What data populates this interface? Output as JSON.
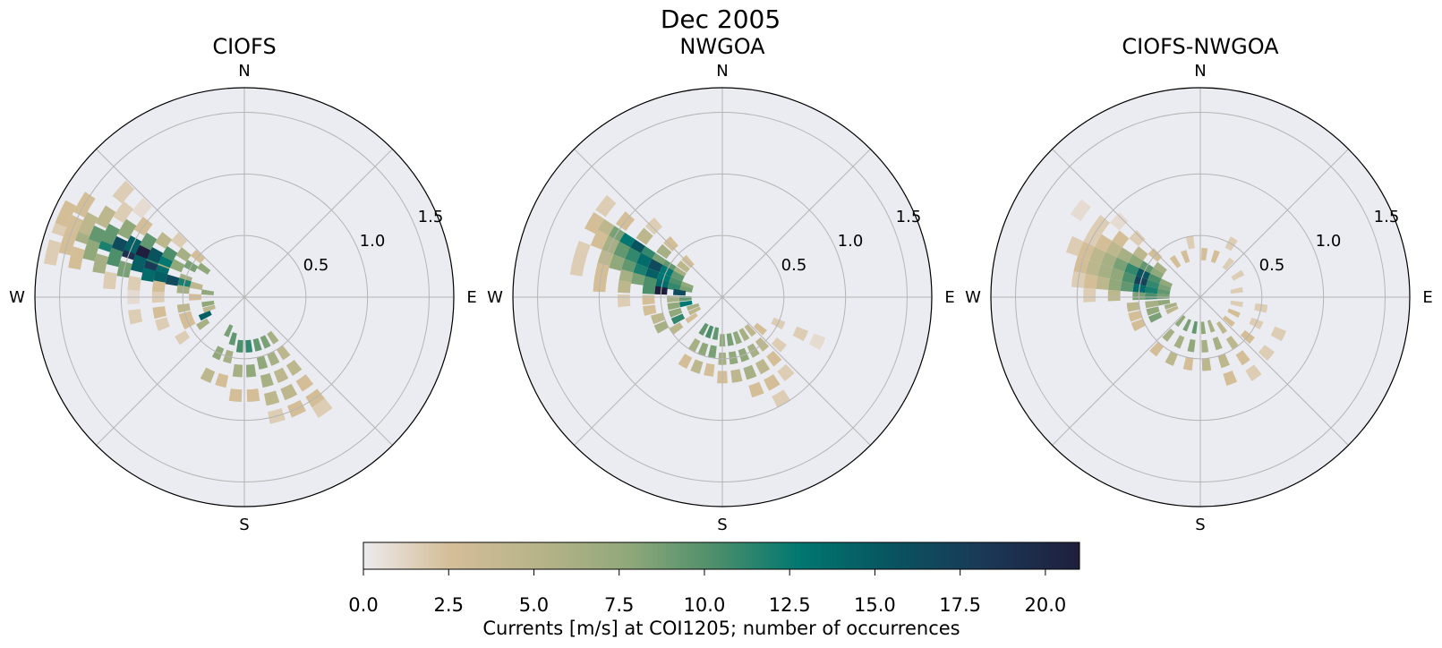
{
  "suptitle": "Dec 2005",
  "compass": {
    "north": "N",
    "east": "E",
    "south": "S",
    "west": "W"
  },
  "radial_ticks": [
    "0.5",
    "1.0",
    "1.5"
  ],
  "colorbar": {
    "label": "Currents [m/s] at COI1205; number of occurrences",
    "ticks": [
      "0.0",
      "2.5",
      "5.0",
      "7.5",
      "10.0",
      "12.5",
      "15.0",
      "17.5",
      "20.0"
    ],
    "range": [
      0,
      21
    ],
    "colors": [
      "#edeaed",
      "#d4be98",
      "#90a87a",
      "#4d8f6b",
      "#007770",
      "#09535f",
      "#1a3a58",
      "#1f1f3d"
    ]
  },
  "colors": {
    "axes_bg": "#ebebf2",
    "grid": "#b5b5b5",
    "edge": "#000000"
  },
  "chart_data": [
    {
      "type": "heatmap",
      "subtype": "polar current rose (speed vs direction, counts)",
      "title": "CIOFS",
      "rmax": 1.7,
      "rticks": [
        0.5,
        1.0,
        1.5
      ],
      "note": "Counts concentrated toward WNW (speeds up to ~1.6 m/s) and SE (up to ~1.1 m/s).",
      "bins": [
        [
          292,
          0.7,
          5
        ],
        [
          292,
          0.8,
          10
        ],
        [
          292,
          0.9,
          14
        ],
        [
          292,
          1.0,
          19
        ],
        [
          292,
          1.1,
          16
        ],
        [
          292,
          1.2,
          11
        ],
        [
          292,
          1.3,
          8
        ],
        [
          292,
          1.4,
          5
        ],
        [
          292,
          1.5,
          3
        ],
        [
          292,
          1.6,
          2
        ],
        [
          295,
          0.6,
          6
        ],
        [
          295,
          0.7,
          12
        ],
        [
          295,
          0.8,
          15
        ],
        [
          295,
          0.9,
          21
        ],
        [
          295,
          1.0,
          14
        ],
        [
          295,
          1.2,
          8
        ],
        [
          295,
          1.4,
          4
        ],
        [
          295,
          1.6,
          3
        ],
        [
          287,
          0.5,
          5
        ],
        [
          287,
          0.7,
          13
        ],
        [
          287,
          0.8,
          18
        ],
        [
          287,
          0.9,
          14
        ],
        [
          287,
          1.1,
          9
        ],
        [
          287,
          1.3,
          6
        ],
        [
          287,
          1.5,
          3
        ],
        [
          283,
          0.4,
          4
        ],
        [
          283,
          0.5,
          11
        ],
        [
          283,
          0.6,
          16
        ],
        [
          283,
          0.7,
          14
        ],
        [
          283,
          0.8,
          13
        ],
        [
          283,
          1.0,
          7
        ],
        [
          283,
          1.2,
          5
        ],
        [
          283,
          1.4,
          3
        ],
        [
          283,
          1.6,
          2
        ],
        [
          300,
          0.5,
          7
        ],
        [
          300,
          0.7,
          9
        ],
        [
          300,
          0.9,
          8
        ],
        [
          300,
          1.1,
          6
        ],
        [
          300,
          1.3,
          4
        ],
        [
          300,
          1.5,
          3
        ],
        [
          305,
          0.4,
          6
        ],
        [
          305,
          0.6,
          5
        ],
        [
          305,
          0.8,
          4
        ],
        [
          305,
          1.0,
          3
        ],
        [
          305,
          1.2,
          2
        ],
        [
          311,
          0.5,
          3
        ],
        [
          311,
          0.7,
          2
        ],
        [
          311,
          1.1,
          1
        ],
        [
          311,
          1.3,
          2
        ],
        [
          277,
          0.3,
          6
        ],
        [
          277,
          0.5,
          5
        ],
        [
          277,
          0.7,
          3
        ],
        [
          277,
          0.9,
          2
        ],
        [
          277,
          1.1,
          2
        ],
        [
          270,
          0.4,
          3
        ],
        [
          270,
          0.7,
          2
        ],
        [
          270,
          0.9,
          1
        ],
        [
          260,
          0.3,
          6
        ],
        [
          260,
          0.5,
          4
        ],
        [
          260,
          0.7,
          3
        ],
        [
          260,
          0.9,
          2
        ],
        [
          252,
          0.3,
          4
        ],
        [
          252,
          0.5,
          3
        ],
        [
          252,
          0.7,
          2
        ],
        [
          245,
          0.35,
          14
        ],
        [
          245,
          0.5,
          3
        ],
        [
          237,
          0.4,
          5
        ],
        [
          237,
          0.6,
          2
        ],
        [
          205,
          0.3,
          7
        ],
        [
          205,
          0.5,
          6
        ],
        [
          205,
          0.7,
          4
        ],
        [
          195,
          0.35,
          8
        ],
        [
          195,
          0.5,
          5
        ],
        [
          195,
          0.7,
          3
        ],
        [
          185,
          0.4,
          9
        ],
        [
          185,
          0.6,
          5
        ],
        [
          185,
          0.8,
          3
        ],
        [
          175,
          0.4,
          10
        ],
        [
          175,
          0.6,
          6
        ],
        [
          175,
          0.8,
          3
        ],
        [
          165,
          0.4,
          8
        ],
        [
          165,
          0.55,
          6
        ],
        [
          165,
          0.7,
          5
        ],
        [
          165,
          0.85,
          4
        ],
        [
          165,
          1.0,
          2
        ],
        [
          155,
          0.4,
          7
        ],
        [
          155,
          0.55,
          5
        ],
        [
          155,
          0.7,
          4
        ],
        [
          155,
          0.85,
          4
        ],
        [
          155,
          1.0,
          3
        ],
        [
          145,
          0.4,
          5
        ],
        [
          145,
          0.55,
          4
        ],
        [
          145,
          0.7,
          4
        ],
        [
          145,
          0.85,
          3
        ],
        [
          145,
          1.0,
          3
        ],
        [
          145,
          1.1,
          2
        ]
      ]
    },
    {
      "type": "heatmap",
      "subtype": "polar current rose (speed vs direction, counts)",
      "title": "NWGOA",
      "rmax": 1.7,
      "rticks": [
        0.5,
        1.0,
        1.5
      ],
      "note": "Counts concentrated toward WNW (up to ~1.3 m/s) and SE (up to ~0.9 m/s).",
      "bins": [
        [
          300,
          0.4,
          5
        ],
        [
          300,
          0.5,
          8
        ],
        [
          300,
          0.6,
          7
        ],
        [
          300,
          0.7,
          10
        ],
        [
          300,
          0.8,
          15
        ],
        [
          300,
          0.9,
          12
        ],
        [
          300,
          1.0,
          7
        ],
        [
          300,
          1.1,
          4
        ],
        [
          300,
          1.2,
          3
        ],
        [
          295,
          0.4,
          8
        ],
        [
          295,
          0.5,
          12
        ],
        [
          295,
          0.6,
          16
        ],
        [
          295,
          0.7,
          13
        ],
        [
          295,
          0.8,
          10
        ],
        [
          295,
          0.9,
          8
        ],
        [
          295,
          1.0,
          5
        ],
        [
          295,
          1.1,
          3
        ],
        [
          288,
          0.3,
          6
        ],
        [
          288,
          0.4,
          9
        ],
        [
          288,
          0.5,
          12
        ],
        [
          288,
          0.6,
          14
        ],
        [
          288,
          0.7,
          11
        ],
        [
          288,
          0.8,
          8
        ],
        [
          288,
          0.9,
          6
        ],
        [
          288,
          1.0,
          4
        ],
        [
          288,
          1.2,
          2
        ],
        [
          282,
          0.3,
          7
        ],
        [
          282,
          0.4,
          10
        ],
        [
          282,
          0.5,
          13
        ],
        [
          282,
          0.6,
          9
        ],
        [
          282,
          0.7,
          7
        ],
        [
          282,
          0.8,
          5
        ],
        [
          282,
          1.0,
          3
        ],
        [
          282,
          1.2,
          2
        ],
        [
          276,
          0.35,
          16
        ],
        [
          276,
          0.5,
          21
        ],
        [
          276,
          0.6,
          9
        ],
        [
          276,
          0.8,
          4
        ],
        [
          276,
          1.0,
          3
        ],
        [
          308,
          0.4,
          4
        ],
        [
          308,
          0.6,
          5
        ],
        [
          308,
          0.8,
          4
        ],
        [
          308,
          1.0,
          3
        ],
        [
          308,
          1.2,
          2
        ],
        [
          316,
          0.4,
          3
        ],
        [
          316,
          0.6,
          3
        ],
        [
          316,
          0.8,
          2
        ],
        [
          268,
          0.3,
          8
        ],
        [
          268,
          0.4,
          5
        ],
        [
          268,
          0.6,
          3
        ],
        [
          268,
          0.8,
          2
        ],
        [
          260,
          0.3,
          12
        ],
        [
          260,
          0.4,
          6
        ],
        [
          260,
          0.6,
          3
        ],
        [
          252,
          0.25,
          5
        ],
        [
          252,
          0.4,
          6
        ],
        [
          252,
          0.55,
          4
        ],
        [
          244,
          0.25,
          4
        ],
        [
          244,
          0.4,
          10
        ],
        [
          244,
          0.55,
          5
        ],
        [
          236,
          0.3,
          3
        ],
        [
          236,
          0.45,
          4
        ],
        [
          210,
          0.3,
          8
        ],
        [
          210,
          0.45,
          5
        ],
        [
          210,
          0.6,
          3
        ],
        [
          200,
          0.3,
          9
        ],
        [
          200,
          0.45,
          6
        ],
        [
          200,
          0.6,
          4
        ],
        [
          190,
          0.3,
          8
        ],
        [
          190,
          0.45,
          7
        ],
        [
          190,
          0.6,
          3
        ],
        [
          180,
          0.35,
          6
        ],
        [
          180,
          0.5,
          5
        ],
        [
          180,
          0.65,
          3
        ],
        [
          170,
          0.35,
          7
        ],
        [
          170,
          0.5,
          6
        ],
        [
          170,
          0.65,
          4
        ],
        [
          160,
          0.35,
          6
        ],
        [
          160,
          0.5,
          6
        ],
        [
          160,
          0.65,
          5
        ],
        [
          160,
          0.8,
          3
        ],
        [
          150,
          0.35,
          5
        ],
        [
          150,
          0.5,
          5
        ],
        [
          150,
          0.65,
          4
        ],
        [
          150,
          0.8,
          3
        ],
        [
          150,
          0.95,
          2
        ],
        [
          140,
          0.35,
          4
        ],
        [
          140,
          0.5,
          4
        ],
        [
          140,
          0.65,
          3
        ],
        [
          140,
          0.8,
          2
        ],
        [
          130,
          0.4,
          3
        ],
        [
          130,
          0.6,
          2
        ],
        [
          115,
          0.5,
          2
        ],
        [
          115,
          0.7,
          2
        ],
        [
          115,
          0.85,
          1
        ]
      ]
    },
    {
      "type": "heatmap",
      "subtype": "polar current rose (speed vs direction, counts)",
      "title": "CIOFS-NWGOA",
      "rmax": 1.7,
      "rticks": [
        0.5,
        1.0,
        1.5
      ],
      "note": "Difference speeds mostly below ~1.1 m/s, spread widely with a WNW maximum near 0.5 m/s.",
      "bins": [
        [
          292,
          0.3,
          6
        ],
        [
          292,
          0.4,
          9
        ],
        [
          292,
          0.5,
          15
        ],
        [
          292,
          0.6,
          10
        ],
        [
          292,
          0.7,
          7
        ],
        [
          292,
          0.8,
          5
        ],
        [
          292,
          0.9,
          4
        ],
        [
          292,
          1.0,
          3
        ],
        [
          292,
          1.1,
          2
        ],
        [
          285,
          0.3,
          7
        ],
        [
          285,
          0.4,
          10
        ],
        [
          285,
          0.5,
          17
        ],
        [
          285,
          0.6,
          9
        ],
        [
          285,
          0.7,
          6
        ],
        [
          285,
          0.8,
          5
        ],
        [
          285,
          0.9,
          4
        ],
        [
          285,
          1.0,
          3
        ],
        [
          278,
          0.3,
          8
        ],
        [
          278,
          0.4,
          11
        ],
        [
          278,
          0.5,
          13
        ],
        [
          278,
          0.6,
          8
        ],
        [
          278,
          0.7,
          6
        ],
        [
          278,
          0.8,
          4
        ],
        [
          278,
          0.9,
          3
        ],
        [
          278,
          1.0,
          2
        ],
        [
          271,
          0.3,
          7
        ],
        [
          271,
          0.4,
          9
        ],
        [
          271,
          0.5,
          7
        ],
        [
          271,
          0.7,
          4
        ],
        [
          271,
          0.9,
          2
        ],
        [
          299,
          0.4,
          6
        ],
        [
          299,
          0.5,
          8
        ],
        [
          299,
          0.6,
          6
        ],
        [
          299,
          0.7,
          5
        ],
        [
          299,
          0.8,
          4
        ],
        [
          299,
          0.9,
          3
        ],
        [
          299,
          1.0,
          2
        ],
        [
          306,
          0.4,
          5
        ],
        [
          306,
          0.6,
          4
        ],
        [
          306,
          0.8,
          3
        ],
        [
          306,
          1.0,
          2
        ],
        [
          306,
          1.2,
          1
        ],
        [
          313,
          0.5,
          3
        ],
        [
          313,
          0.7,
          2
        ],
        [
          313,
          0.9,
          1
        ],
        [
          262,
          0.3,
          6
        ],
        [
          262,
          0.4,
          5
        ],
        [
          262,
          0.55,
          4
        ],
        [
          254,
          0.25,
          5
        ],
        [
          254,
          0.4,
          6
        ],
        [
          254,
          0.55,
          3
        ],
        [
          246,
          0.25,
          4
        ],
        [
          246,
          0.4,
          7
        ],
        [
          246,
          0.55,
          3
        ],
        [
          220,
          0.25,
          6
        ],
        [
          220,
          0.4,
          5
        ],
        [
          220,
          0.55,
          3
        ],
        [
          205,
          0.25,
          7
        ],
        [
          205,
          0.4,
          5
        ],
        [
          205,
          0.55,
          4
        ],
        [
          190,
          0.25,
          8
        ],
        [
          190,
          0.4,
          6
        ],
        [
          190,
          0.55,
          3
        ],
        [
          175,
          0.25,
          6
        ],
        [
          175,
          0.4,
          5
        ],
        [
          175,
          0.55,
          4
        ],
        [
          160,
          0.25,
          5
        ],
        [
          160,
          0.4,
          5
        ],
        [
          160,
          0.55,
          4
        ],
        [
          160,
          0.7,
          3
        ],
        [
          145,
          0.3,
          4
        ],
        [
          145,
          0.45,
          4
        ],
        [
          145,
          0.6,
          3
        ],
        [
          145,
          0.75,
          2
        ],
        [
          130,
          0.3,
          3
        ],
        [
          130,
          0.5,
          3
        ],
        [
          130,
          0.7,
          2
        ],
        [
          115,
          0.3,
          3
        ],
        [
          115,
          0.5,
          2
        ],
        [
          115,
          0.7,
          2
        ],
        [
          100,
          0.3,
          2
        ],
        [
          100,
          0.5,
          2
        ],
        [
          80,
          0.3,
          2
        ],
        [
          60,
          0.35,
          2
        ],
        [
          40,
          0.35,
          2
        ],
        [
          20,
          0.35,
          3
        ],
        [
          5,
          0.35,
          3
        ],
        [
          340,
          0.35,
          3
        ],
        [
          325,
          0.35,
          3
        ],
        [
          350,
          0.45,
          2
        ],
        [
          30,
          0.5,
          2
        ]
      ]
    }
  ]
}
